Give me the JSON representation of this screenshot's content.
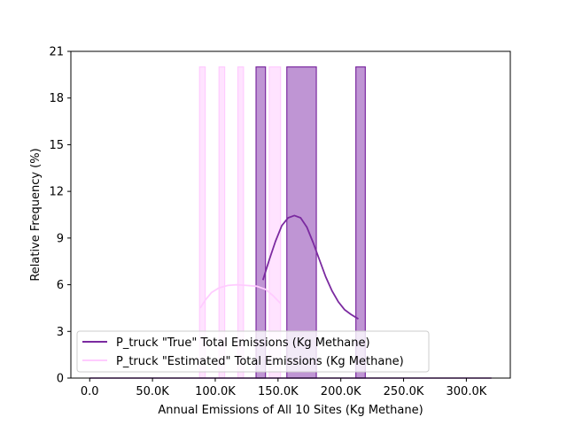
{
  "chart_data": {
    "type": "histogram",
    "title": "",
    "xlabel": "Annual Emissions of All 10 Sites (Kg Methane)",
    "ylabel": "Relative Frequency (%)",
    "xlim": [
      -15000,
      335000
    ],
    "ylim": [
      0,
      21
    ],
    "x_ticks": [
      {
        "value": 0,
        "label": "0.0"
      },
      {
        "value": 50000,
        "label": "50.0K"
      },
      {
        "value": 100000,
        "label": "100.0K"
      },
      {
        "value": 150000,
        "label": "150.0K"
      },
      {
        "value": 200000,
        "label": "200.0K"
      },
      {
        "value": 250000,
        "label": "250.0K"
      },
      {
        "value": 300000,
        "label": "300.0K"
      }
    ],
    "y_ticks": [
      {
        "value": 0,
        "label": "0"
      },
      {
        "value": 3,
        "label": "3"
      },
      {
        "value": 6,
        "label": "6"
      },
      {
        "value": 9,
        "label": "9"
      },
      {
        "value": 12,
        "label": "12"
      },
      {
        "value": 15,
        "label": "15"
      },
      {
        "value": 18,
        "label": "18"
      },
      {
        "value": 21,
        "label": "21"
      }
    ],
    "baseline_xrange": [
      0,
      320000
    ],
    "grid": false,
    "legend_position": "lower-left",
    "series": [
      {
        "name": "P_truck \"Estimated\" Total Emissions (Kg Methane)",
        "color": "#ffccff",
        "fill_opacity": 0.55,
        "bars": [
          {
            "x0": 87500,
            "x1": 92000,
            "value": 20
          },
          {
            "x0": 103000,
            "x1": 107500,
            "value": 20
          },
          {
            "x0": 118000,
            "x1": 122500,
            "value": 20
          },
          {
            "x0": 143000,
            "x1": 152000,
            "value": 20
          }
        ],
        "kde": [
          [
            88000,
            4.5
          ],
          [
            92000,
            5.0
          ],
          [
            97000,
            5.5
          ],
          [
            103000,
            5.8
          ],
          [
            110000,
            5.95
          ],
          [
            117000,
            6.0
          ],
          [
            125000,
            5.95
          ],
          [
            133000,
            5.9
          ],
          [
            140000,
            5.7
          ],
          [
            146000,
            5.3
          ],
          [
            152000,
            4.8
          ]
        ]
      },
      {
        "name": "P_truck \"True\" Total Emissions (Kg Methane)",
        "color": "#7b2aa0",
        "fill_color": "#bf95d4",
        "fill_opacity": 1,
        "bars": [
          {
            "x0": 132500,
            "x1": 140000,
            "value": 20
          },
          {
            "x0": 157000,
            "x1": 180500,
            "value": 20
          },
          {
            "x0": 212000,
            "x1": 219500,
            "value": 20
          }
        ],
        "kde": [
          [
            138000,
            6.3
          ],
          [
            143000,
            7.6
          ],
          [
            148000,
            8.8
          ],
          [
            153000,
            9.8
          ],
          [
            158000,
            10.3
          ],
          [
            163000,
            10.45
          ],
          [
            168000,
            10.3
          ],
          [
            173000,
            9.7
          ],
          [
            178000,
            8.7
          ],
          [
            183000,
            7.6
          ],
          [
            188000,
            6.5
          ],
          [
            193000,
            5.6
          ],
          [
            198000,
            4.9
          ],
          [
            203000,
            4.4
          ],
          [
            208000,
            4.1
          ],
          [
            214000,
            3.8
          ]
        ]
      }
    ]
  }
}
